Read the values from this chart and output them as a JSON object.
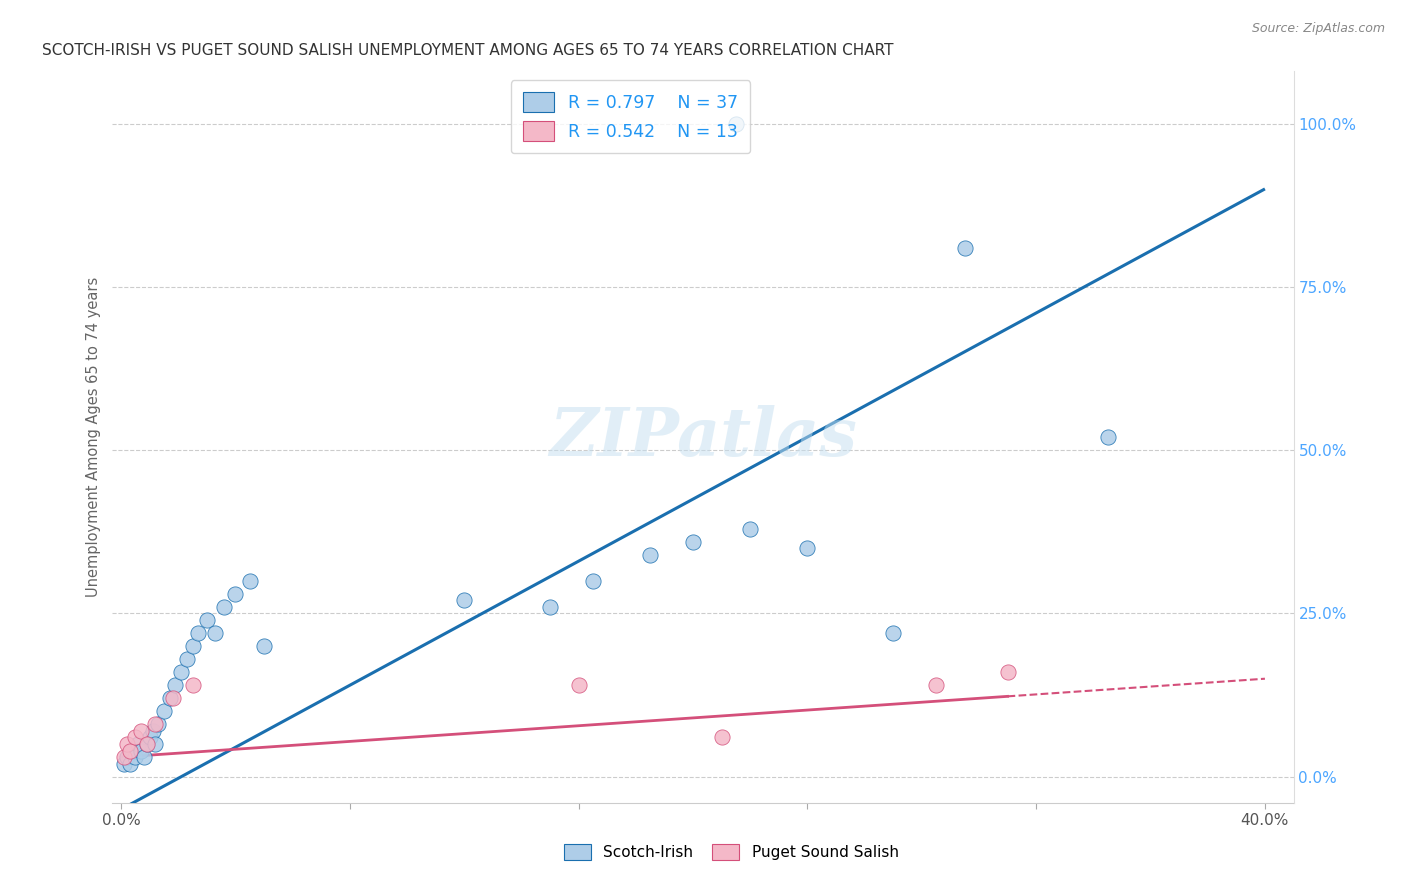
{
  "title": "SCOTCH-IRISH VS PUGET SOUND SALISH UNEMPLOYMENT AMONG AGES 65 TO 74 YEARS CORRELATION CHART",
  "source": "Source: ZipAtlas.com",
  "ylabel": "Unemployment Among Ages 65 to 74 years",
  "xlim": [
    -0.003,
    0.41
  ],
  "ylim": [
    -0.04,
    1.08
  ],
  "y_ticks": [
    0.0,
    0.25,
    0.5,
    0.75,
    1.0
  ],
  "y_tick_labels": [
    "0.0%",
    "25.0%",
    "50.0%",
    "75.0%",
    "100.0%"
  ],
  "x_ticks": [
    0.0,
    0.08,
    0.16,
    0.24,
    0.32,
    0.4
  ],
  "x_tick_labels": [
    "0.0%",
    "",
    "",
    "",
    "",
    "40.0%"
  ],
  "blue_color": "#aecde8",
  "blue_line": "#1a6faf",
  "pink_color": "#f4b8c8",
  "pink_line": "#d44f7a",
  "legend_blue_R": "R = 0.797",
  "legend_blue_N": "N = 37",
  "legend_pink_R": "R = 0.542",
  "legend_pink_N": "N = 13",
  "scotch_x": [
    0.001,
    0.002,
    0.003,
    0.004,
    0.005,
    0.006,
    0.007,
    0.008,
    0.009,
    0.01,
    0.011,
    0.012,
    0.013,
    0.015,
    0.017,
    0.019,
    0.021,
    0.023,
    0.025,
    0.027,
    0.03,
    0.033,
    0.036,
    0.04,
    0.045,
    0.05,
    0.12,
    0.15,
    0.165,
    0.185,
    0.2,
    0.22,
    0.24,
    0.27,
    0.295,
    0.345,
    0.215
  ],
  "scotch_y": [
    0.02,
    0.03,
    0.02,
    0.04,
    0.03,
    0.05,
    0.04,
    0.03,
    0.05,
    0.06,
    0.07,
    0.05,
    0.08,
    0.1,
    0.12,
    0.14,
    0.16,
    0.18,
    0.2,
    0.22,
    0.24,
    0.22,
    0.26,
    0.28,
    0.3,
    0.2,
    0.27,
    0.26,
    0.3,
    0.34,
    0.36,
    0.38,
    0.35,
    0.22,
    0.81,
    0.52,
    1.0
  ],
  "salish_x": [
    0.001,
    0.002,
    0.003,
    0.005,
    0.007,
    0.009,
    0.012,
    0.018,
    0.025,
    0.16,
    0.21,
    0.285,
    0.31
  ],
  "salish_y": [
    0.03,
    0.05,
    0.04,
    0.06,
    0.07,
    0.05,
    0.08,
    0.12,
    0.14,
    0.14,
    0.06,
    0.14,
    0.16
  ],
  "watermark": "ZIPatlas",
  "background_color": "#ffffff",
  "grid_color": "#cccccc"
}
